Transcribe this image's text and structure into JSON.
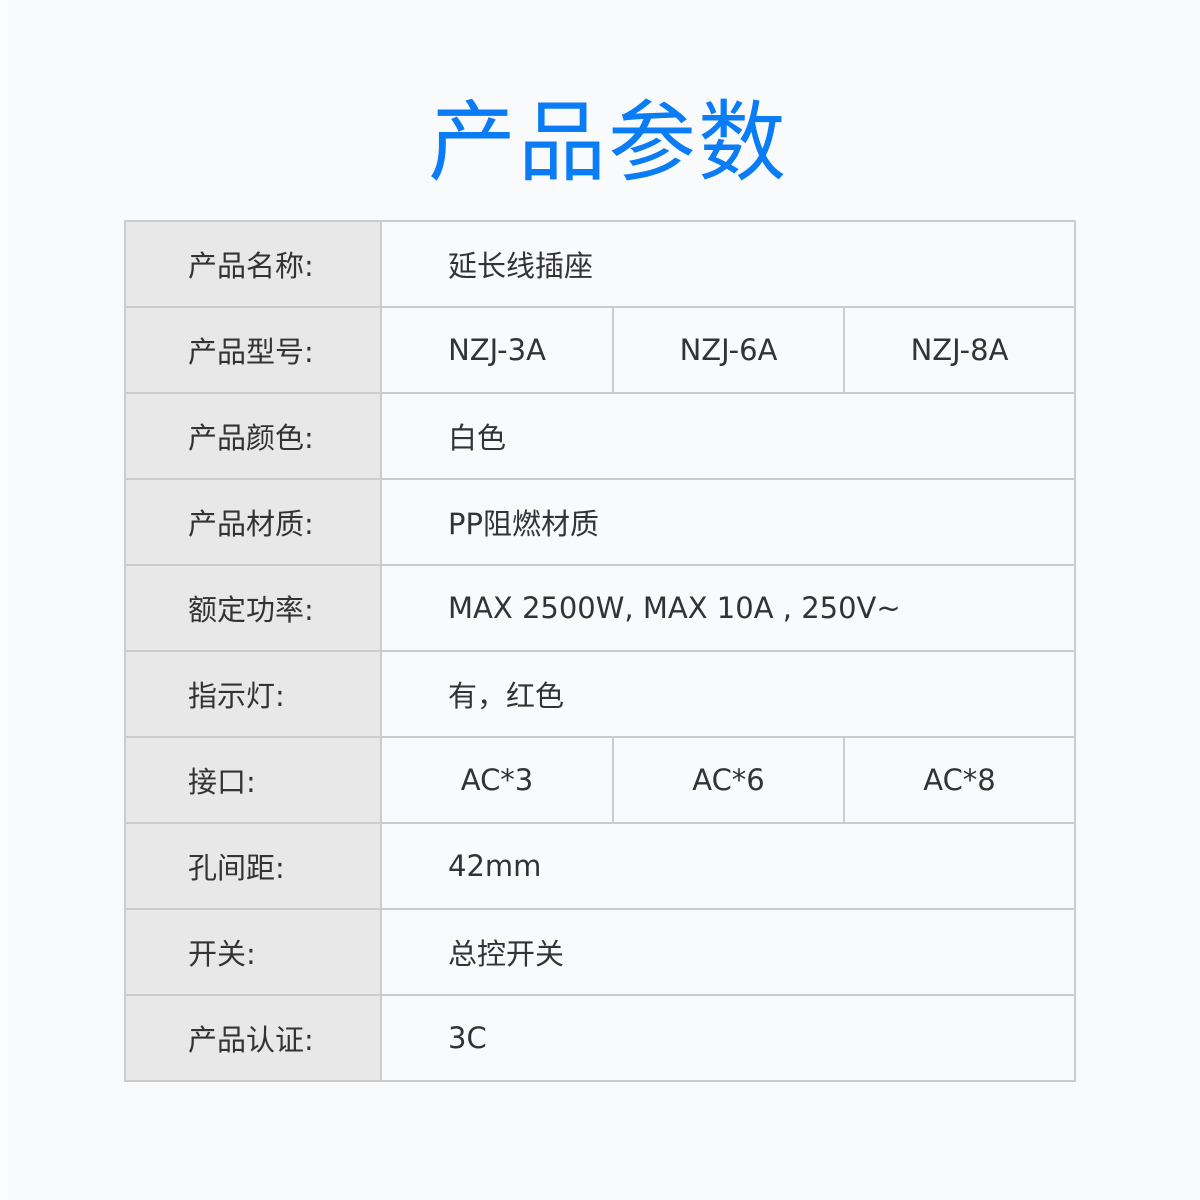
{
  "title": "产品参数",
  "colors": {
    "title": "#0a7cf5",
    "label_bg": "#e8e8e8",
    "border": "#cccccc",
    "text": "#333333"
  },
  "rows": [
    {
      "label": "产品名称:",
      "values": [
        "延长线插座"
      ]
    },
    {
      "label": "产品型号:",
      "values": [
        "NZJ-3A",
        "NZJ-6A",
        "NZJ-8A"
      ]
    },
    {
      "label": "产品颜色:",
      "values": [
        "白色"
      ]
    },
    {
      "label": "产品材质:",
      "values": [
        "PP阻燃材质"
      ]
    },
    {
      "label": "额定功率:",
      "values": [
        "MAX 2500W, MAX 10A , 250V~"
      ]
    },
    {
      "label": "指示灯:",
      "values": [
        "有，红色"
      ]
    },
    {
      "label": "接口:",
      "values": [
        "AC*3",
        "AC*6",
        "AC*8"
      ]
    },
    {
      "label": "孔间距:",
      "values": [
        "42mm"
      ]
    },
    {
      "label": "开关:",
      "values": [
        "总控开关"
      ]
    },
    {
      "label": "产品认证:",
      "values": [
        "3C"
      ]
    }
  ]
}
